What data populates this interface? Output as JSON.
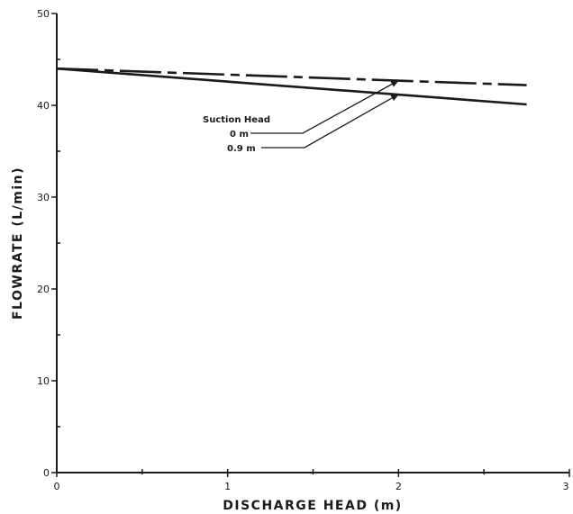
{
  "chart_data": {
    "type": "line",
    "title": "",
    "xlabel": "DISCHARGE HEAD (m)",
    "ylabel": "FLOWRATE (L/min)",
    "xlim": [
      0,
      3
    ],
    "ylim": [
      0,
      50
    ],
    "x_ticks": [
      0,
      0.5,
      1,
      1.5,
      2,
      2.5,
      3
    ],
    "x_tick_labels": [
      "0",
      "",
      "1",
      "",
      "2",
      "",
      "3"
    ],
    "y_ticks": [
      0,
      5,
      10,
      15,
      20,
      25,
      30,
      35,
      40,
      45,
      50
    ],
    "y_tick_labels": [
      "0",
      "",
      "10",
      "",
      "20",
      "",
      "30",
      "",
      "40",
      "",
      "50"
    ],
    "grid": false,
    "legend_title": "Suction Head",
    "series": [
      {
        "name": "0 m",
        "style": "dashed",
        "x": [
          0,
          2.75
        ],
        "y": [
          44.0,
          42.2
        ]
      },
      {
        "name": "0.9 m",
        "style": "solid",
        "x": [
          0,
          2.75
        ],
        "y": [
          44.0,
          40.1
        ]
      }
    ],
    "annotation_targets": [
      {
        "series": "0 m",
        "x": 2.0,
        "y": 42.7
      },
      {
        "series": "0.9 m",
        "x": 2.0,
        "y": 41.2
      }
    ]
  }
}
